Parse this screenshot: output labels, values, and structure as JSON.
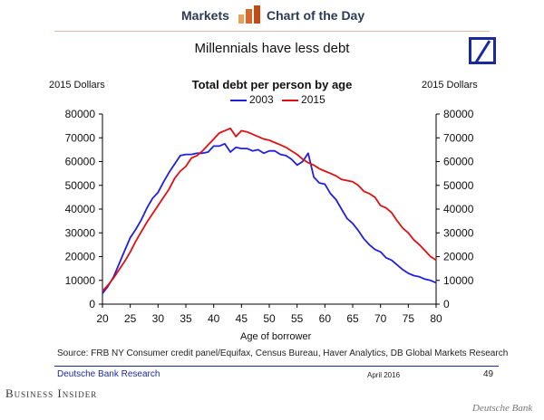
{
  "header": {
    "markets": "Markets",
    "chart_of_day": "Chart of the Day"
  },
  "footer": {
    "org": "Deutsche Bank Research",
    "date": "April 2016",
    "page": "49"
  },
  "brand": "Business Insider",
  "credit": "Deutsche Bank",
  "colors": {
    "s2003": "#1f1fe0",
    "s2015": "#e01010",
    "brand_blue": "#1a2a9c"
  },
  "chart_data": {
    "type": "line",
    "title": "Millennials have less debt",
    "subtitle": "Total debt per person by age",
    "ylabel_left": "2015 Dollars",
    "ylabel_right": "2015 Dollars",
    "xlabel": "Age of borrower",
    "xlim": [
      20,
      80
    ],
    "ylim": [
      0,
      80000
    ],
    "xticks": [
      "20",
      "25",
      "30",
      "35",
      "40",
      "45",
      "50",
      "55",
      "60",
      "65",
      "70",
      "75",
      "80"
    ],
    "yticks": [
      "0",
      "10000",
      "20000",
      "30000",
      "40000",
      "50000",
      "60000",
      "70000",
      "80000"
    ],
    "grid": false,
    "legend": "top-center",
    "source": "Source: FRB NY Consumer credit panel/Equifax, Census Bureau, Haver Analytics, DB Global Markets Research",
    "series": [
      {
        "name": "2003",
        "x": [
          20,
          21,
          22,
          23,
          24,
          25,
          26,
          27,
          28,
          29,
          30,
          31,
          32,
          33,
          34,
          35,
          36,
          37,
          38,
          39,
          40,
          41,
          42,
          43,
          44,
          45,
          46,
          47,
          48,
          49,
          50,
          51,
          52,
          53,
          54,
          55,
          56,
          57,
          58,
          59,
          60,
          61,
          62,
          63,
          64,
          65,
          66,
          67,
          68,
          69,
          70,
          71,
          72,
          73,
          74,
          75,
          76,
          77,
          78,
          79,
          80
        ],
        "y": [
          4500,
          7500,
          11500,
          17000,
          22500,
          28000,
          31500,
          35500,
          40500,
          44500,
          47000,
          51500,
          55500,
          59000,
          62500,
          63000,
          63000,
          63500,
          63500,
          64000,
          66500,
          66500,
          67500,
          64000,
          66000,
          65500,
          65500,
          64500,
          65000,
          63500,
          64500,
          64500,
          63000,
          62500,
          61000,
          58500,
          60000,
          63500,
          53500,
          51000,
          50500,
          46500,
          44000,
          40000,
          36000,
          34000,
          31000,
          27500,
          25000,
          23000,
          22000,
          19500,
          18500,
          16500,
          14500,
          13000,
          12000,
          11500,
          10500,
          10000,
          9000
        ]
      },
      {
        "name": "2015",
        "x": [
          20,
          21,
          22,
          23,
          24,
          25,
          26,
          27,
          28,
          29,
          30,
          31,
          32,
          33,
          34,
          35,
          36,
          37,
          38,
          39,
          40,
          41,
          42,
          43,
          44,
          45,
          46,
          47,
          48,
          49,
          50,
          51,
          52,
          53,
          54,
          55,
          56,
          57,
          58,
          59,
          60,
          61,
          62,
          63,
          64,
          65,
          66,
          67,
          68,
          69,
          70,
          71,
          72,
          73,
          74,
          75,
          76,
          77,
          78,
          79,
          80
        ],
        "y": [
          5500,
          8000,
          11000,
          14500,
          18000,
          22000,
          26500,
          30500,
          34500,
          38000,
          41500,
          45000,
          48500,
          53000,
          56000,
          58000,
          61500,
          62500,
          64500,
          67000,
          69500,
          72000,
          73000,
          74000,
          70500,
          73000,
          72500,
          71500,
          70500,
          69500,
          69000,
          68000,
          67000,
          66000,
          64500,
          63000,
          61000,
          59500,
          58500,
          57000,
          56000,
          55000,
          54000,
          52500,
          52000,
          51500,
          50000,
          47500,
          46500,
          45000,
          41500,
          40500,
          38500,
          35000,
          32000,
          30000,
          27000,
          25000,
          22500,
          20000,
          18500
        ]
      }
    ]
  }
}
